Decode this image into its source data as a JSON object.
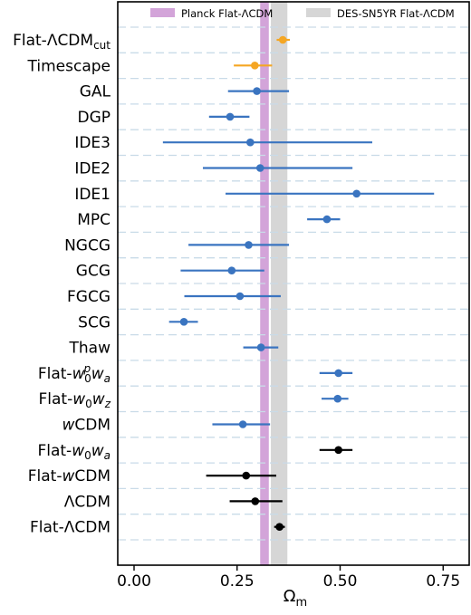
{
  "chart_data": {
    "type": "scatter",
    "xlabel": "Ω",
    "xlabel_sub": "m",
    "xlim": [
      -0.055,
      0.815
    ],
    "xticks": [
      0.0,
      0.25,
      0.5,
      0.75
    ],
    "xtick_labels": [
      "0.00",
      "0.25",
      "0.50",
      "0.75"
    ],
    "grid": "horizontal dashed",
    "legend_position": "top",
    "bands": [
      {
        "name": "Planck Flat-ΛCDM",
        "low": 0.306,
        "high": 0.327,
        "color": "#d3a4d9"
      },
      {
        "name": "DES-SN5YR Flat-ΛCDM",
        "low": 0.332,
        "high": 0.372,
        "color": "#d6d6d6"
      }
    ],
    "points": [
      {
        "name": "Flat-ΛCDM",
        "sub": "cut",
        "value": 0.361,
        "low": 0.346,
        "high": 0.378,
        "color": "#f5a623"
      },
      {
        "name": "Timescape",
        "value": 0.293,
        "low": 0.242,
        "high": 0.335,
        "color": "#f5a623"
      },
      {
        "name": "GAL",
        "value": 0.298,
        "low": 0.228,
        "high": 0.376,
        "color": "#3a74c0"
      },
      {
        "name": "DGP",
        "value": 0.233,
        "low": 0.182,
        "high": 0.28,
        "color": "#3a74c0"
      },
      {
        "name": "IDE3",
        "value": 0.282,
        "low": 0.07,
        "high": 0.578,
        "color": "#3a74c0"
      },
      {
        "name": "IDE2",
        "value": 0.306,
        "low": 0.167,
        "high": 0.53,
        "color": "#3a74c0"
      },
      {
        "name": "IDE1",
        "value": 0.54,
        "low": 0.222,
        "high": 0.728,
        "color": "#3a74c0"
      },
      {
        "name": "MPC",
        "value": 0.468,
        "low": 0.42,
        "high": 0.5,
        "color": "#3a74c0"
      },
      {
        "name": "NGCG",
        "value": 0.278,
        "low": 0.132,
        "high": 0.376,
        "color": "#3a74c0"
      },
      {
        "name": "GCG",
        "value": 0.237,
        "low": 0.113,
        "high": 0.316,
        "color": "#3a74c0"
      },
      {
        "name": "FGCG",
        "value": 0.257,
        "low": 0.122,
        "high": 0.356,
        "color": "#3a74c0"
      },
      {
        "name": "SCG",
        "value": 0.121,
        "low": 0.085,
        "high": 0.155,
        "color": "#3a74c0"
      },
      {
        "name": "Thaw",
        "value": 0.308,
        "low": 0.265,
        "high": 0.35,
        "color": "#3a74c0"
      },
      {
        "name": "Flat-w0pwa",
        "value": 0.496,
        "low": 0.45,
        "high": 0.53,
        "color": "#3a74c0"
      },
      {
        "name": "Flat-w0wz",
        "value": 0.494,
        "low": 0.455,
        "high": 0.52,
        "color": "#3a74c0"
      },
      {
        "name": "wCDM",
        "value": 0.264,
        "low": 0.19,
        "high": 0.33,
        "color": "#3a74c0"
      },
      {
        "name": "Flat-w0wa",
        "value": 0.496,
        "low": 0.45,
        "high": 0.53,
        "color": "#000000"
      },
      {
        "name": "Flat-wCDM",
        "value": 0.272,
        "low": 0.175,
        "high": 0.345,
        "color": "#000000"
      },
      {
        "name": "ΛCDM",
        "value": 0.294,
        "low": 0.232,
        "high": 0.36,
        "color": "#000000"
      },
      {
        "name": "Flat-ΛCDM",
        "value": 0.353,
        "low": 0.34,
        "high": 0.366,
        "color": "#000000"
      }
    ]
  }
}
